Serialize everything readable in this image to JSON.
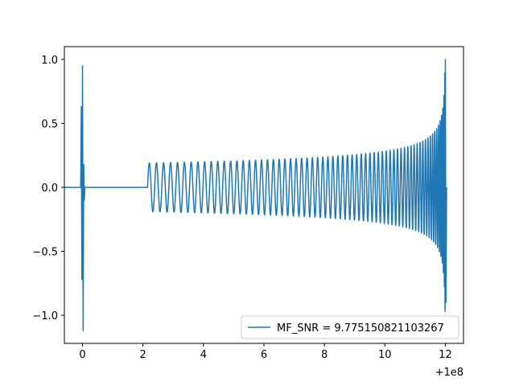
{
  "chart_data": {
    "type": "line",
    "title": "",
    "xlabel": "",
    "ylabel": "",
    "x_offset_label": "+1e8",
    "xlim": [
      -0.6,
      12.6
    ],
    "ylim": [
      -1.22,
      1.1
    ],
    "x_ticks": [
      {
        "value": 0,
        "label": "0"
      },
      {
        "value": 2,
        "label": "2"
      },
      {
        "value": 4,
        "label": "4"
      },
      {
        "value": 6,
        "label": "6"
      },
      {
        "value": 8,
        "label": "8"
      },
      {
        "value": 10,
        "label": "10"
      },
      {
        "value": 12,
        "label": "12"
      }
    ],
    "y_ticks": [
      {
        "value": 1.0,
        "label": "1.0"
      },
      {
        "value": 0.5,
        "label": "0.5"
      },
      {
        "value": 0.0,
        "label": "0.0"
      },
      {
        "value": -0.5,
        "label": "−0.5"
      },
      {
        "value": -1.0,
        "label": "−1.0"
      }
    ],
    "grid": false,
    "legend_position": "lower-right",
    "series": [
      {
        "name": "MF_SNR = 9.775150821103267",
        "color": "#1f77b4",
        "description": "chirp waveform: short spike near x=0 (range -1.12 to 0.95), flat zero until x~2.15, then oscillation with amplitude growing from ~0.19 to ~1.0 and increasing frequency up to x~12",
        "points": [
          [
            -0.6,
            0.0
          ],
          [
            -0.06,
            0.0
          ],
          [
            -0.04,
            0.63
          ],
          [
            -0.02,
            -0.72
          ],
          [
            0.0,
            0.95
          ],
          [
            0.02,
            -1.12
          ],
          [
            0.04,
            0.18
          ],
          [
            0.06,
            -0.1
          ],
          [
            0.08,
            0.0
          ],
          [
            2.15,
            0.0
          ],
          [
            12.0,
            1.0
          ],
          [
            12.02,
            -0.9
          ],
          [
            12.04,
            0.0
          ]
        ]
      }
    ]
  }
}
